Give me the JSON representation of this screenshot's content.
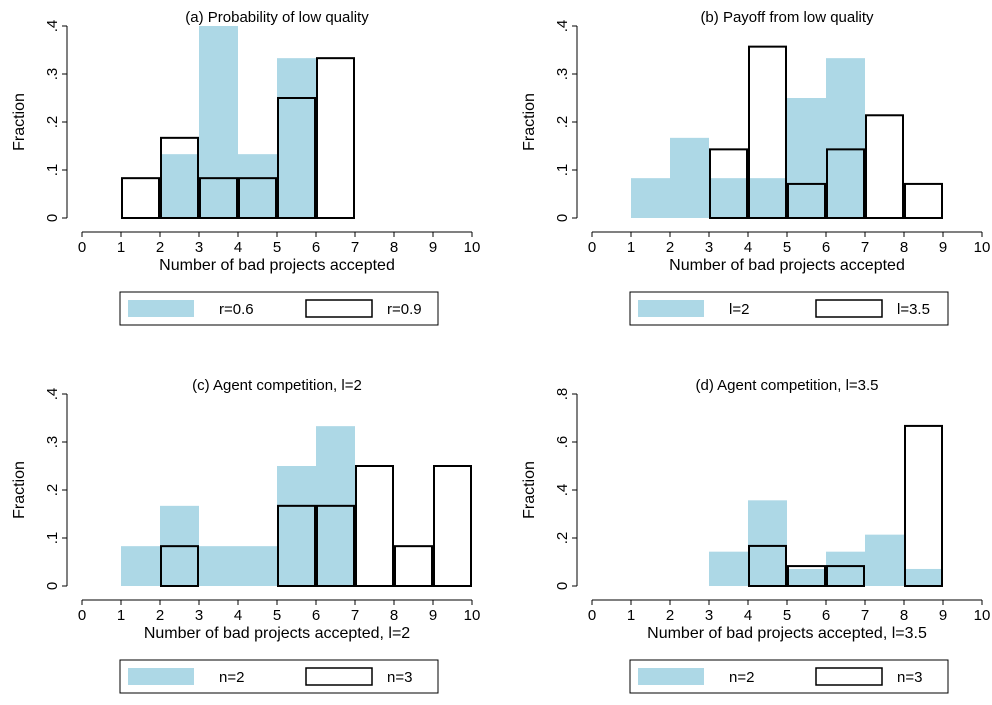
{
  "colors": {
    "fill_series": "#add8e6",
    "outline_series": "#000000",
    "background": "#ffffff"
  },
  "chart_data": [
    {
      "type": "bar",
      "title": "(a) Probability of low quality",
      "xlabel": "Number of bad projects accepted",
      "ylabel": "Fraction",
      "xlim": [
        0,
        10
      ],
      "ylim": [
        0,
        0.4
      ],
      "x_ticks": [
        "0",
        "1",
        "2",
        "3",
        "4",
        "5",
        "6",
        "7",
        "8",
        "9",
        "10"
      ],
      "y_ticks": [
        {
          "value": 0,
          "label": "0"
        },
        {
          "value": 0.1,
          "label": ".1"
        },
        {
          "value": 0.2,
          "label": ".2"
        },
        {
          "value": 0.3,
          "label": ".3"
        },
        {
          "value": 0.4,
          "label": ".4"
        }
      ],
      "legend": [
        "r=0.6",
        "r=0.9"
      ],
      "legend_position": "bottom",
      "series": [
        {
          "name": "r=0.6",
          "style": "filled",
          "bins": [
            {
              "x0": 2,
              "x1": 3,
              "value": 0.133
            },
            {
              "x0": 3,
              "x1": 4,
              "value": 0.4
            },
            {
              "x0": 4,
              "x1": 5,
              "value": 0.133
            },
            {
              "x0": 5,
              "x1": 6,
              "value": 0.333
            }
          ]
        },
        {
          "name": "r=0.9",
          "style": "outline",
          "bins": [
            {
              "x0": 1,
              "x1": 2,
              "value": 0.083
            },
            {
              "x0": 2,
              "x1": 3,
              "value": 0.167
            },
            {
              "x0": 3,
              "x1": 4,
              "value": 0.083
            },
            {
              "x0": 4,
              "x1": 5,
              "value": 0.083
            },
            {
              "x0": 5,
              "x1": 6,
              "value": 0.25
            },
            {
              "x0": 6,
              "x1": 7,
              "value": 0.333
            }
          ]
        }
      ]
    },
    {
      "type": "bar",
      "title": "(b) Payoff from low quality",
      "xlabel": "Number of bad projects accepted",
      "ylabel": "Fraction",
      "xlim": [
        0,
        10
      ],
      "ylim": [
        0,
        0.4
      ],
      "x_ticks": [
        "0",
        "1",
        "2",
        "3",
        "4",
        "5",
        "6",
        "7",
        "8",
        "9",
        "10"
      ],
      "y_ticks": [
        {
          "value": 0,
          "label": "0"
        },
        {
          "value": 0.1,
          "label": ".1"
        },
        {
          "value": 0.2,
          "label": ".2"
        },
        {
          "value": 0.3,
          "label": ".3"
        },
        {
          "value": 0.4,
          "label": ".4"
        }
      ],
      "legend": [
        "l=2",
        "l=3.5"
      ],
      "legend_position": "bottom",
      "series": [
        {
          "name": "l=2",
          "style": "filled",
          "bins": [
            {
              "x0": 1,
              "x1": 2,
              "value": 0.083
            },
            {
              "x0": 2,
              "x1": 3,
              "value": 0.167
            },
            {
              "x0": 3,
              "x1": 4,
              "value": 0.083
            },
            {
              "x0": 4,
              "x1": 5,
              "value": 0.083
            },
            {
              "x0": 5,
              "x1": 6,
              "value": 0.25
            },
            {
              "x0": 6,
              "x1": 7,
              "value": 0.333
            }
          ]
        },
        {
          "name": "l=3.5",
          "style": "outline",
          "bins": [
            {
              "x0": 3,
              "x1": 4,
              "value": 0.143
            },
            {
              "x0": 4,
              "x1": 5,
              "value": 0.357
            },
            {
              "x0": 5,
              "x1": 6,
              "value": 0.071
            },
            {
              "x0": 6,
              "x1": 7,
              "value": 0.143
            },
            {
              "x0": 7,
              "x1": 8,
              "value": 0.214
            },
            {
              "x0": 8,
              "x1": 9,
              "value": 0.071
            }
          ]
        }
      ]
    },
    {
      "type": "bar",
      "title": "(c) Agent competition, l=2",
      "xlabel": "Number of bad projects accepted, l=2",
      "ylabel": "Fraction",
      "xlim": [
        0,
        10
      ],
      "ylim": [
        0,
        0.4
      ],
      "x_ticks": [
        "0",
        "1",
        "2",
        "3",
        "4",
        "5",
        "6",
        "7",
        "8",
        "9",
        "10"
      ],
      "y_ticks": [
        {
          "value": 0,
          "label": "0"
        },
        {
          "value": 0.1,
          "label": ".1"
        },
        {
          "value": 0.2,
          "label": ".2"
        },
        {
          "value": 0.3,
          "label": ".3"
        },
        {
          "value": 0.4,
          "label": ".4"
        }
      ],
      "legend": [
        "n=2",
        "n=3"
      ],
      "legend_position": "bottom",
      "series": [
        {
          "name": "n=2",
          "style": "filled",
          "bins": [
            {
              "x0": 1,
              "x1": 2,
              "value": 0.083
            },
            {
              "x0": 2,
              "x1": 3,
              "value": 0.167
            },
            {
              "x0": 3,
              "x1": 4,
              "value": 0.083
            },
            {
              "x0": 4,
              "x1": 5,
              "value": 0.083
            },
            {
              "x0": 5,
              "x1": 6,
              "value": 0.25
            },
            {
              "x0": 6,
              "x1": 7,
              "value": 0.333
            }
          ]
        },
        {
          "name": "n=3",
          "style": "outline",
          "bins": [
            {
              "x0": 2,
              "x1": 3,
              "value": 0.083
            },
            {
              "x0": 5,
              "x1": 6,
              "value": 0.167
            },
            {
              "x0": 6,
              "x1": 7,
              "value": 0.167
            },
            {
              "x0": 7,
              "x1": 8,
              "value": 0.25
            },
            {
              "x0": 8,
              "x1": 9,
              "value": 0.083
            },
            {
              "x0": 9,
              "x1": 10,
              "value": 0.25
            }
          ]
        }
      ]
    },
    {
      "type": "bar",
      "title": "(d) Agent competition, l=3.5",
      "xlabel": "Number of bad projects accepted, l=3.5",
      "ylabel": "Fraction",
      "xlim": [
        0,
        10
      ],
      "ylim": [
        0,
        0.8
      ],
      "x_ticks": [
        "0",
        "1",
        "2",
        "3",
        "4",
        "5",
        "6",
        "7",
        "8",
        "9",
        "10"
      ],
      "y_ticks": [
        {
          "value": 0,
          "label": "0"
        },
        {
          "value": 0.2,
          "label": ".2"
        },
        {
          "value": 0.4,
          "label": ".4"
        },
        {
          "value": 0.6,
          "label": ".6"
        },
        {
          "value": 0.8,
          "label": ".8"
        }
      ],
      "legend": [
        "n=2",
        "n=3"
      ],
      "legend_position": "bottom",
      "series": [
        {
          "name": "n=2",
          "style": "filled",
          "bins": [
            {
              "x0": 3,
              "x1": 4,
              "value": 0.143
            },
            {
              "x0": 4,
              "x1": 5,
              "value": 0.357
            },
            {
              "x0": 5,
              "x1": 6,
              "value": 0.071
            },
            {
              "x0": 6,
              "x1": 7,
              "value": 0.143
            },
            {
              "x0": 7,
              "x1": 8,
              "value": 0.214
            },
            {
              "x0": 8,
              "x1": 9,
              "value": 0.071
            }
          ]
        },
        {
          "name": "n=3",
          "style": "outline",
          "bins": [
            {
              "x0": 4,
              "x1": 5,
              "value": 0.167
            },
            {
              "x0": 5,
              "x1": 6,
              "value": 0.083
            },
            {
              "x0": 6,
              "x1": 7,
              "value": 0.083
            },
            {
              "x0": 8,
              "x1": 9,
              "value": 0.667
            }
          ]
        }
      ]
    }
  ]
}
